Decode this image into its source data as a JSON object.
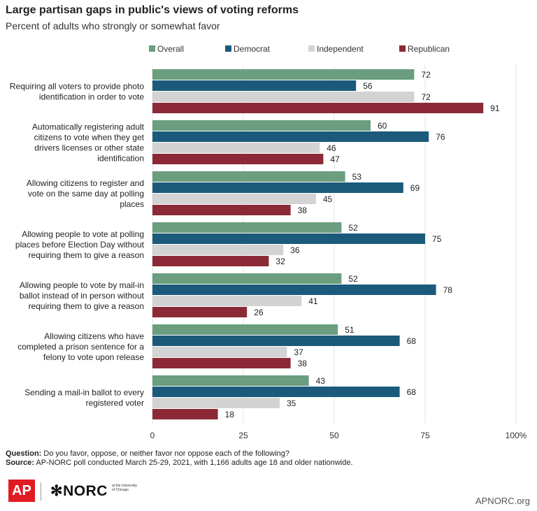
{
  "title": "Large partisan gaps in public's views of voting reforms",
  "subtitle": "Percent of adults who strongly or somewhat favor",
  "chart_data": {
    "type": "bar",
    "orientation": "horizontal",
    "categories": [
      [
        "Requiring all voters to provide photo",
        "identification in order to vote"
      ],
      [
        "Automatically registering adult",
        "citizens to vote when they get",
        "drivers licenses or other state",
        "identification"
      ],
      [
        "Allowing citizens to register and",
        "vote on the same day at polling",
        "places"
      ],
      [
        "Allowing people to vote at polling",
        "places before Election Day without",
        "requiring them to give a reason"
      ],
      [
        "Allowing people to vote by mail-in",
        "ballot instead of in person without",
        "requiring them to give a reason"
      ],
      [
        "Allowing citizens who have",
        "completed a prison sentence for a",
        "felony to vote upon release"
      ],
      [
        "Sending a mail-in ballot to every",
        "registered voter"
      ]
    ],
    "series": [
      {
        "name": "Overall",
        "color": "#6a9e7f",
        "values": [
          72,
          60,
          53,
          52,
          52,
          51,
          43
        ]
      },
      {
        "name": "Democrat",
        "color": "#1b5a7a",
        "values": [
          56,
          76,
          69,
          75,
          78,
          68,
          68
        ]
      },
      {
        "name": "Independent",
        "color": "#d3d3d3",
        "values": [
          72,
          46,
          45,
          36,
          41,
          37,
          35
        ]
      },
      {
        "name": "Republican",
        "color": "#8b2a36",
        "values": [
          91,
          47,
          38,
          32,
          26,
          38,
          18
        ]
      }
    ],
    "xlim": [
      0,
      100
    ],
    "xticks": [
      "0",
      "25",
      "50",
      "75",
      "100%"
    ],
    "grid": true,
    "legend_position": "top"
  },
  "footer": {
    "question_label": "Question:",
    "question_text": "Do you favor, oppose, or neither favor nor oppose each of the following?",
    "source_label": "Source:",
    "source_text": "AP-NORC poll conducted March 25-29, 2021, with 1,166 adults age 18 and older nationwide."
  },
  "logos": {
    "ap": "AP",
    "norc": "NORC",
    "norc_sub": "at the University of Chicago"
  },
  "site": "APNORC.org"
}
